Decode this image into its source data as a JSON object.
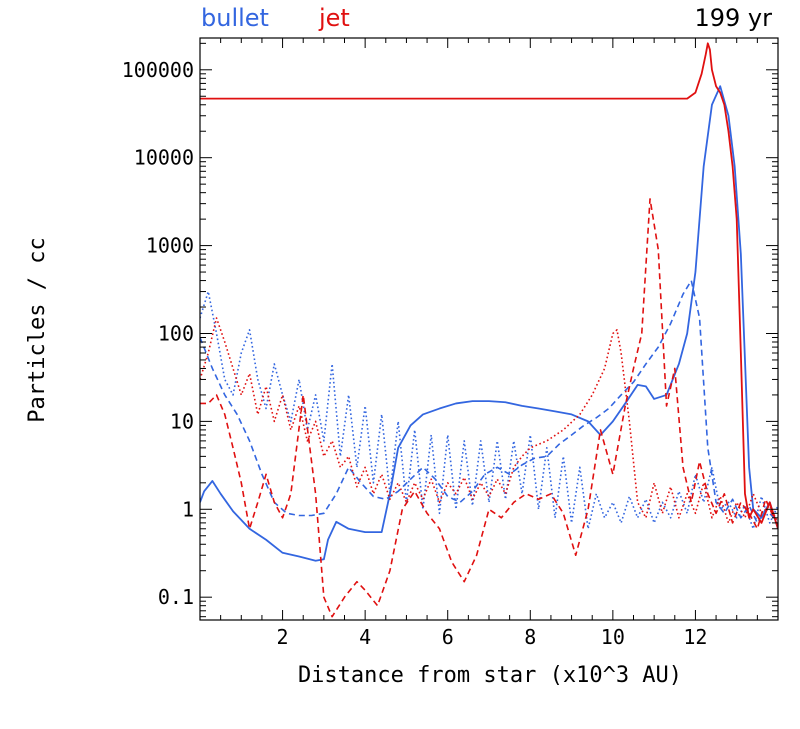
{
  "chart_data": {
    "type": "line",
    "xlabel": "Distance from star (x10^3 AU)",
    "ylabel": "Particles / cc",
    "xlim": [
      0,
      14
    ],
    "ylim": [
      0.055,
      230000
    ],
    "yscale": "log",
    "grid": false,
    "legend_placement": "top-left",
    "annotation": "199 yr",
    "x_ticks": [
      {
        "value": 2,
        "label": "2"
      },
      {
        "value": 4,
        "label": "4"
      },
      {
        "value": 6,
        "label": "6"
      },
      {
        "value": 8,
        "label": "8"
      },
      {
        "value": 10,
        "label": "10"
      },
      {
        "value": 12,
        "label": "12"
      }
    ],
    "y_ticks": [
      {
        "value": 0.1,
        "label": "0.1"
      },
      {
        "value": 1,
        "label": "1"
      },
      {
        "value": 10,
        "label": "10"
      },
      {
        "value": 100,
        "label": "100"
      },
      {
        "value": 1000,
        "label": "1000"
      },
      {
        "value": 10000,
        "label": "10000"
      },
      {
        "value": 100000,
        "label": "100000"
      }
    ],
    "legend": [
      {
        "label": "bullet",
        "color": "#3366e0"
      },
      {
        "label": "jet",
        "color": "#e01010"
      }
    ],
    "series": [
      {
        "group": "bullet",
        "style": "solid",
        "color": "#3366e0",
        "x": [
          0,
          0.1,
          0.3,
          0.5,
          0.8,
          1.2,
          1.6,
          2.0,
          2.4,
          2.8,
          3.0,
          3.1,
          3.3,
          3.6,
          4.0,
          4.4,
          4.6,
          4.8,
          5.1,
          5.4,
          5.8,
          6.2,
          6.6,
          7.0,
          7.4,
          7.8,
          8.2,
          8.6,
          9.0,
          9.4,
          9.7,
          10.0,
          10.3,
          10.6,
          10.8,
          11.0,
          11.3,
          11.6,
          11.8,
          12.0,
          12.2,
          12.4,
          12.6,
          12.8,
          12.95,
          13.1,
          13.2,
          13.3,
          13.4,
          13.6,
          13.8,
          14.0
        ],
        "y": [
          1.2,
          1.6,
          2.1,
          1.5,
          0.95,
          0.6,
          0.45,
          0.32,
          0.29,
          0.26,
          0.27,
          0.45,
          0.72,
          0.6,
          0.55,
          0.55,
          1.5,
          5,
          9,
          12,
          14,
          16,
          17,
          17,
          16.5,
          15,
          14,
          13,
          12,
          10,
          7,
          10,
          16,
          26,
          25,
          18,
          20,
          45,
          100,
          500,
          8000,
          40000,
          65000,
          30000,
          8000,
          800,
          50,
          3,
          1.0,
          0.8,
          1.2,
          0.6
        ]
      },
      {
        "group": "bullet",
        "style": "dashed",
        "color": "#3366e0",
        "x": [
          0,
          0.3,
          0.6,
          0.9,
          1.2,
          1.5,
          1.8,
          2.1,
          2.4,
          2.7,
          3.0,
          3.3,
          3.6,
          3.9,
          4.2,
          4.5,
          4.8,
          5.1,
          5.4,
          5.7,
          6.0,
          6.3,
          6.6,
          6.9,
          7.2,
          7.5,
          7.8,
          8.1,
          8.4,
          8.7,
          9.0,
          9.3,
          9.6,
          9.9,
          10.2,
          10.5,
          10.8,
          11.1,
          11.4,
          11.7,
          11.9,
          12.1,
          12.3,
          12.5,
          12.7,
          12.9,
          13.1,
          13.3,
          13.5,
          13.7,
          13.9
        ],
        "y": [
          90,
          40,
          20,
          12,
          6,
          2.5,
          1.2,
          0.9,
          0.85,
          0.85,
          0.9,
          1.5,
          3,
          2,
          1.4,
          1.3,
          1.6,
          2.2,
          3,
          2.2,
          1.4,
          1.2,
          1.6,
          2.5,
          3,
          2.5,
          3.2,
          3.8,
          4,
          5.5,
          7,
          9,
          11,
          14,
          20,
          28,
          45,
          70,
          130,
          280,
          400,
          150,
          5,
          1.2,
          0.9,
          1.3,
          0.8,
          1.1,
          0.7,
          1.0,
          0.8
        ]
      },
      {
        "group": "bullet",
        "style": "dotted",
        "color": "#3366e0",
        "x": [
          0,
          0.2,
          0.4,
          0.6,
          0.8,
          1.0,
          1.2,
          1.4,
          1.6,
          1.8,
          2.0,
          2.2,
          2.4,
          2.6,
          2.8,
          3.0,
          3.2,
          3.4,
          3.6,
          3.8,
          4.0,
          4.2,
          4.4,
          4.6,
          4.8,
          5.0,
          5.2,
          5.4,
          5.6,
          5.8,
          6.0,
          6.2,
          6.4,
          6.6,
          6.8,
          7.0,
          7.2,
          7.4,
          7.6,
          7.8,
          8.0,
          8.2,
          8.4,
          8.6,
          8.8,
          9.0,
          9.2,
          9.4,
          9.6,
          9.8,
          10.0,
          10.2,
          10.4,
          10.6,
          10.8,
          11.0,
          11.2,
          11.4,
          11.6,
          11.8,
          12.0,
          12.2,
          12.4,
          12.6,
          12.8,
          13.0,
          13.2,
          13.4,
          13.6,
          13.8,
          14.0
        ],
        "y": [
          150,
          300,
          100,
          30,
          20,
          60,
          110,
          30,
          14,
          45,
          20,
          10,
          30,
          8,
          20,
          6,
          45,
          4,
          20,
          3,
          15,
          2,
          12,
          1.5,
          10,
          1.2,
          8,
          1.0,
          7,
          0.9,
          7,
          1.0,
          6,
          1.1,
          6,
          1.2,
          6,
          1.3,
          6,
          1.5,
          7,
          1.0,
          5,
          0.8,
          4,
          0.7,
          3,
          0.6,
          1.5,
          0.8,
          1.2,
          0.7,
          1.4,
          0.8,
          1.3,
          0.7,
          1.2,
          0.8,
          1.6,
          0.9,
          2.5,
          1.2,
          3,
          1.0,
          1.2,
          0.8,
          1.1,
          0.6,
          1.4,
          0.7,
          1.1
        ]
      },
      {
        "group": "jet",
        "style": "solid",
        "color": "#e01010",
        "x": [
          0,
          2,
          4,
          6,
          8,
          10,
          11.5,
          11.8,
          12.0,
          12.15,
          12.25,
          12.3,
          12.35,
          12.4,
          12.5,
          12.6,
          12.7,
          12.8,
          12.9,
          13.0,
          13.1,
          13.2,
          13.3,
          13.4,
          13.6,
          13.8,
          14.0
        ],
        "y": [
          47000,
          47000,
          47000,
          47000,
          47000,
          47000,
          47000,
          47000,
          55000,
          90000,
          150000,
          200000,
          170000,
          100000,
          65000,
          55000,
          40000,
          20000,
          8000,
          2000,
          60,
          1.5,
          0.8,
          1.0,
          0.7,
          1.2,
          0.6
        ]
      },
      {
        "group": "jet",
        "style": "dashed",
        "color": "#e01010",
        "x": [
          0,
          0.2,
          0.4,
          0.6,
          0.8,
          1.0,
          1.2,
          1.4,
          1.6,
          1.8,
          2.0,
          2.2,
          2.5,
          2.8,
          3.0,
          3.2,
          3.5,
          3.8,
          4.0,
          4.3,
          4.6,
          4.9,
          5.2,
          5.5,
          5.8,
          6.1,
          6.4,
          6.7,
          7.0,
          7.3,
          7.6,
          7.9,
          8.2,
          8.5,
          8.8,
          9.1,
          9.4,
          9.7,
          10.0,
          10.3,
          10.5,
          10.7,
          10.9,
          11.1,
          11.3,
          11.5,
          11.7,
          11.9,
          12.1,
          12.3,
          12.5,
          12.7,
          12.9,
          13.1,
          13.3,
          13.5,
          13.7,
          13.9
        ],
        "y": [
          16,
          16,
          20,
          12,
          5,
          2,
          0.6,
          1.2,
          2.5,
          1.2,
          0.8,
          1.5,
          20,
          1.5,
          0.1,
          0.06,
          0.1,
          0.15,
          0.12,
          0.08,
          0.2,
          1.0,
          1.6,
          0.9,
          0.6,
          0.25,
          0.15,
          0.3,
          1.0,
          0.8,
          1.2,
          1.5,
          1.3,
          1.5,
          0.9,
          0.3,
          1.0,
          8,
          2.5,
          15,
          40,
          100,
          3400,
          900,
          15,
          40,
          3,
          1.2,
          3.5,
          1.5,
          0.9,
          1.5,
          0.7,
          1.2,
          0.9,
          0.6,
          1.3,
          0.8
        ]
      },
      {
        "group": "jet",
        "style": "dotted",
        "color": "#e01010",
        "x": [
          0,
          0.2,
          0.4,
          0.6,
          0.8,
          1.0,
          1.2,
          1.4,
          1.6,
          1.8,
          2.0,
          2.2,
          2.4,
          2.6,
          2.8,
          3.0,
          3.2,
          3.4,
          3.6,
          3.8,
          4.0,
          4.2,
          4.4,
          4.6,
          4.8,
          5.0,
          5.2,
          5.4,
          5.6,
          5.8,
          6.0,
          6.2,
          6.4,
          6.6,
          6.8,
          7.0,
          7.2,
          7.4,
          7.6,
          7.8,
          8.0,
          8.4,
          8.8,
          9.2,
          9.5,
          9.8,
          10.0,
          10.1,
          10.2,
          10.4,
          10.6,
          10.8,
          11.0,
          11.2,
          11.4,
          11.6,
          11.8,
          12.0,
          12.2,
          12.4,
          12.6,
          12.8,
          13.0,
          13.2,
          13.4,
          13.6,
          13.8,
          14.0
        ],
        "y": [
          30,
          60,
          150,
          80,
          40,
          20,
          35,
          12,
          25,
          10,
          20,
          8,
          15,
          6,
          10,
          4,
          6,
          3,
          4,
          1.8,
          3,
          1.5,
          2.5,
          1.3,
          2,
          1.2,
          2,
          1.3,
          2.2,
          1.2,
          2,
          1.5,
          2.3,
          1.3,
          2,
          1.4,
          2.2,
          1.5,
          3,
          4,
          5,
          6,
          8,
          12,
          20,
          40,
          100,
          110,
          60,
          10,
          1.2,
          0.8,
          2.0,
          0.9,
          1.8,
          0.8,
          1.5,
          0.9,
          2.0,
          0.8,
          1.4,
          0.7,
          1.2,
          0.8,
          1.5,
          0.9,
          1.1,
          0.7
        ]
      }
    ]
  }
}
